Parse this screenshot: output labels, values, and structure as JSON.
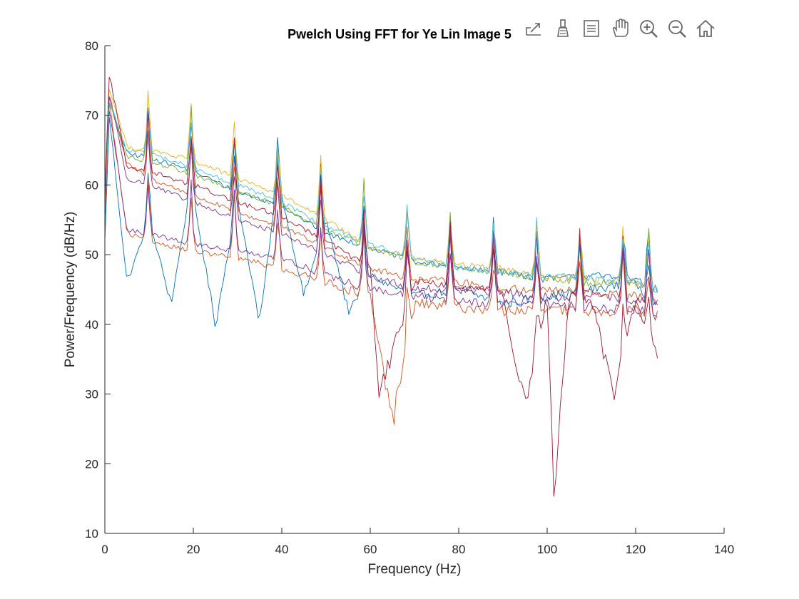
{
  "chart_data": {
    "type": "line",
    "title": "Pwelch Using FFT for Ye Lin Image 5",
    "xlabel": "Frequency (Hz)",
    "ylabel": "Power/Frequency (dB/Hz)",
    "xlim": [
      0,
      140
    ],
    "ylim": [
      10,
      80
    ],
    "xticks": [
      0,
      20,
      40,
      60,
      80,
      100,
      120,
      140
    ],
    "yticks": [
      10,
      20,
      30,
      40,
      50,
      60,
      70,
      80
    ],
    "grid": false,
    "legend": "none",
    "peak_frequencies": [
      9.8,
      19.5,
      29.3,
      39.1,
      48.8,
      58.6,
      68.4,
      78.1,
      87.9,
      97.7,
      107.4,
      117.2,
      122.9
    ],
    "freq_end": 125,
    "colors": [
      "#0072BD",
      "#D95319",
      "#EDB120",
      "#7E2F8E",
      "#77AC30",
      "#4DBEEE",
      "#A2142F"
    ],
    "series": [
      {
        "color": "#0072BD",
        "x": [
          0,
          1,
          5,
          10,
          15,
          19.5,
          25,
          30,
          35,
          39.1,
          45,
          50,
          55,
          60,
          70,
          80,
          90,
          100,
          110,
          120,
          125
        ],
        "y": [
          52,
          70,
          46,
          55,
          43,
          60,
          40,
          58,
          40,
          61,
          44,
          55,
          42,
          47,
          44,
          45,
          43,
          44,
          45,
          46,
          42
        ]
      },
      {
        "color": "#0072BD",
        "x": [
          0,
          1,
          5,
          10,
          20,
          30,
          40,
          50,
          60,
          70,
          80,
          90,
          100,
          110,
          120,
          125
        ],
        "y": [
          56,
          72,
          64.5,
          64,
          62,
          59,
          57,
          53,
          51,
          49,
          48,
          47.5,
          46.5,
          47,
          46.5,
          45
        ]
      },
      {
        "color": "#D95319",
        "x": [
          0,
          1,
          5,
          10,
          20,
          30,
          40,
          50,
          60,
          70,
          80,
          90,
          100,
          110,
          120,
          125
        ],
        "y": [
          55,
          73,
          63,
          61,
          58.5,
          56,
          54,
          51,
          48,
          46.5,
          46,
          45,
          45,
          44.5,
          44,
          43
        ]
      },
      {
        "color": "#D95319",
        "x": [
          0,
          1,
          5,
          10,
          20,
          30,
          40,
          50,
          60,
          65,
          70,
          80,
          90,
          100,
          110,
          120,
          125
        ],
        "y": [
          55,
          72,
          53,
          52,
          50.5,
          49.5,
          48,
          46,
          44,
          26,
          43,
          42.5,
          42,
          42,
          42,
          42,
          41
        ]
      },
      {
        "color": "#EDB120",
        "x": [
          0,
          1,
          5,
          10,
          20,
          30,
          40,
          50,
          60,
          70,
          80,
          90,
          100,
          110,
          120,
          125
        ],
        "y": [
          60,
          74,
          65.5,
          65,
          63.5,
          61,
          58.5,
          55,
          51,
          49.5,
          48.5,
          48,
          47,
          46.5,
          46,
          45
        ]
      },
      {
        "color": "#7E2F8E",
        "x": [
          0,
          1,
          5,
          10,
          20,
          30,
          40,
          50,
          60,
          70,
          80,
          90,
          100,
          110,
          120,
          125
        ],
        "y": [
          58,
          73,
          61,
          60,
          57.5,
          55,
          53,
          50,
          47,
          45,
          45,
          44.5,
          44,
          44,
          43.5,
          43
        ]
      },
      {
        "color": "#7E2F8E",
        "x": [
          0,
          1,
          5,
          10,
          20,
          30,
          40,
          50,
          60,
          70,
          80,
          90,
          100,
          110,
          120,
          125
        ],
        "y": [
          57,
          71,
          53.5,
          53,
          51.5,
          50.5,
          49.5,
          47,
          45,
          44,
          43.5,
          43,
          43,
          42.5,
          42,
          41
        ]
      },
      {
        "color": "#77AC30",
        "x": [
          0,
          1,
          5,
          10,
          20,
          30,
          40,
          50,
          60,
          70,
          80,
          90,
          100,
          110,
          120,
          125
        ],
        "y": [
          58,
          72,
          64,
          63.5,
          61.5,
          59,
          57,
          53.5,
          51,
          49,
          48,
          47.5,
          46.5,
          46,
          46,
          45
        ]
      },
      {
        "color": "#4DBEEE",
        "x": [
          0,
          1,
          5,
          10,
          20,
          30,
          40,
          50,
          60,
          70,
          80,
          90,
          100,
          110,
          120,
          125
        ],
        "y": [
          57,
          72,
          65,
          64.5,
          62.5,
          60,
          57.5,
          54,
          51.5,
          49.5,
          48,
          47.5,
          47,
          46.5,
          46,
          45
        ]
      },
      {
        "color": "#A2142F",
        "x": [
          0,
          1,
          5,
          10,
          20,
          30,
          40,
          50,
          60,
          62,
          70,
          80,
          90,
          95,
          100,
          101.5,
          105,
          110,
          115,
          120,
          125
        ],
        "y": [
          58,
          76,
          62.5,
          62,
          60,
          57.5,
          55.5,
          52,
          48,
          30,
          46,
          45.5,
          44.5,
          28,
          44,
          15,
          44,
          43.5,
          30,
          43,
          35
        ]
      }
    ]
  },
  "toolbar": {
    "tools": [
      "export-icon",
      "brush-icon",
      "legend-icon",
      "pan-hand-icon",
      "zoom-in-icon",
      "zoom-out-icon",
      "home-icon"
    ]
  }
}
